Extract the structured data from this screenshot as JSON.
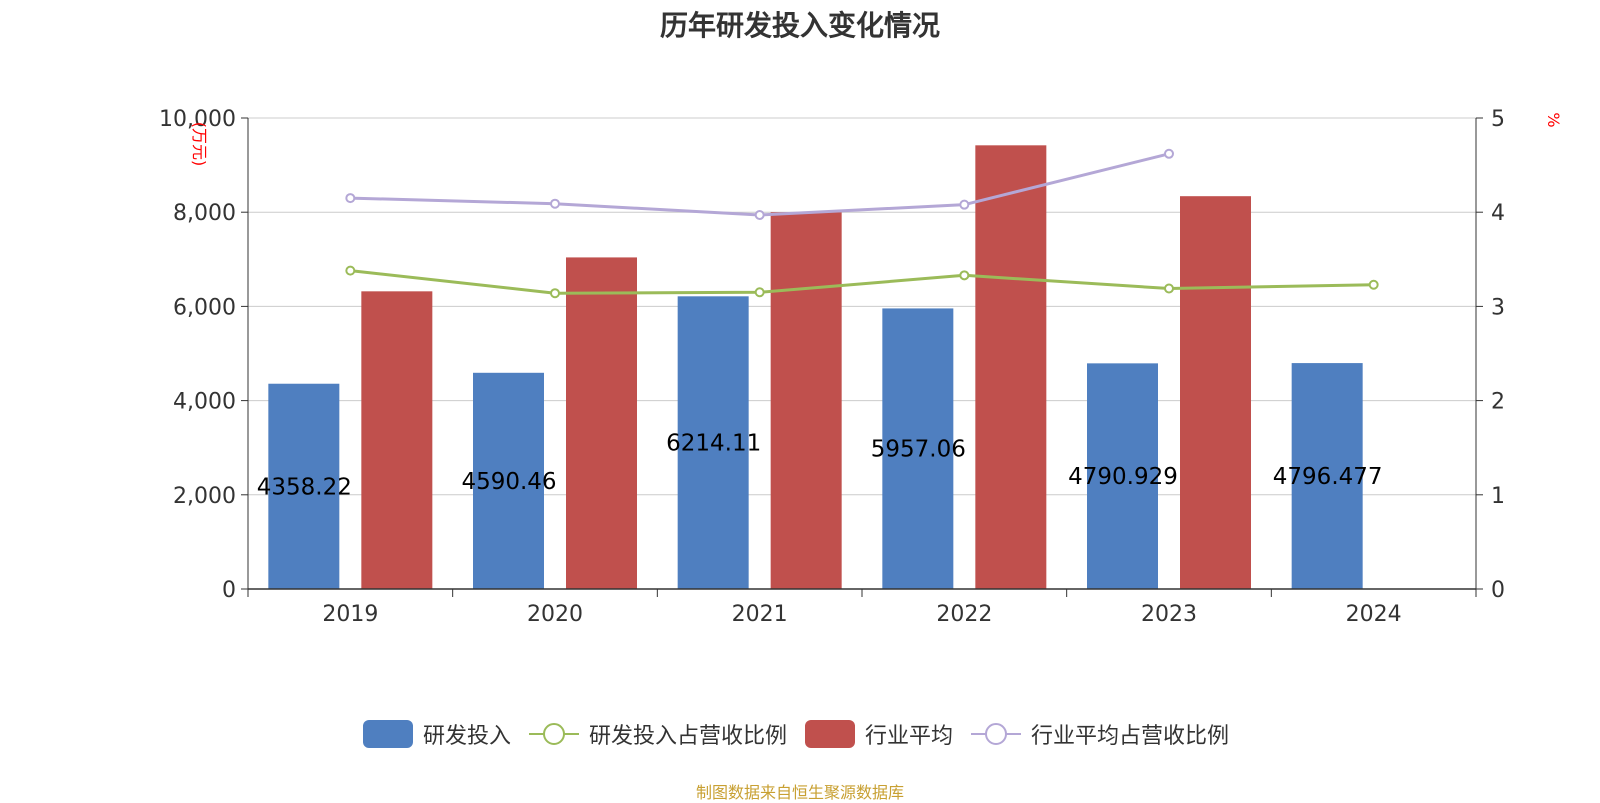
{
  "title": "历年研发投入变化情况",
  "source": "制图数据来自恒生聚源数据库",
  "colors": {
    "rd": "#4f7fc0",
    "industry": "#c0504d",
    "rd_ratio": "#9bbb59",
    "industry_ratio": "#b4a7d6",
    "grid": "#cccccc",
    "axis": "#333333",
    "unit": "#ff0000"
  },
  "chart_data": {
    "type": "bar",
    "categories": [
      "2019",
      "2020",
      "2021",
      "2022",
      "2023",
      "2024"
    ],
    "y_left": {
      "label": "(万元)",
      "ylim": [
        0,
        10000
      ],
      "ticks": [
        "0",
        "2,000",
        "4,000",
        "6,000",
        "8,000",
        "10,000"
      ]
    },
    "y_right": {
      "label": "%",
      "ylim": [
        0,
        5
      ],
      "ticks": [
        "0",
        "1",
        "2",
        "3",
        "4",
        "5"
      ]
    },
    "grid": true,
    "legend_position": "bottom",
    "series": [
      {
        "name": "研发投入",
        "type": "bar",
        "axis": "left",
        "values": [
          4358.22,
          4590.46,
          6214.11,
          5957.06,
          4790.929,
          4796.477
        ],
        "labels": [
          "4358.22",
          "4590.46",
          "6214.11",
          "5957.06",
          "4790.929",
          "4796.477"
        ]
      },
      {
        "name": "研发投入占营收比例",
        "type": "line",
        "axis": "right",
        "values": [
          3.38,
          3.14,
          3.15,
          3.33,
          3.19,
          3.23
        ]
      },
      {
        "name": "行业平均",
        "type": "bar",
        "axis": "left",
        "values": [
          6320,
          7040,
          8000,
          9420,
          8340,
          null
        ]
      },
      {
        "name": "行业平均占营收比例",
        "type": "line",
        "axis": "right",
        "values": [
          4.15,
          4.09,
          3.97,
          4.08,
          4.62,
          null
        ]
      }
    ]
  }
}
